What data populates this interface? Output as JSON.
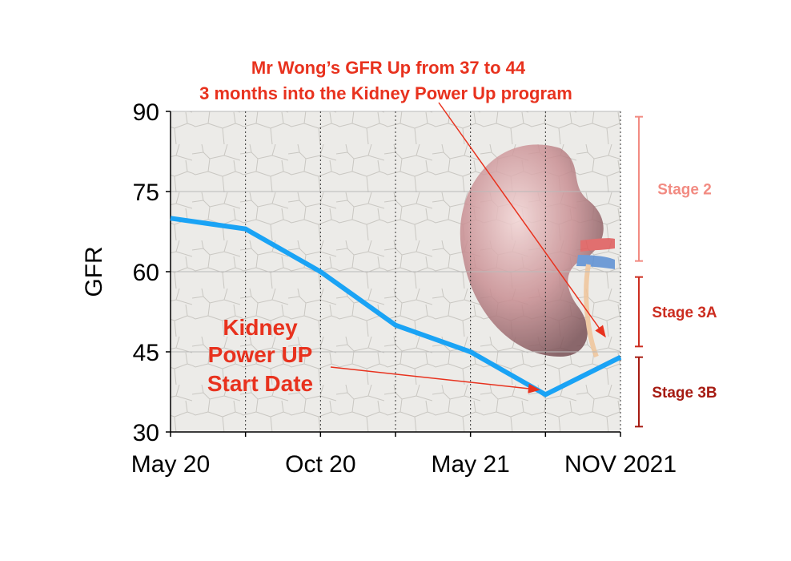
{
  "title": {
    "line1": "Mr Wong’s GFR Up from 37 to 44",
    "line2": "3 months into the Kidney Power Up program",
    "color": "#e8321e"
  },
  "chart_data": {
    "type": "line",
    "ylabel": "GFR",
    "xlabel": "",
    "ylim": [
      30,
      90
    ],
    "yticks": [
      30,
      45,
      60,
      75,
      90
    ],
    "x_tick_labels": [
      {
        "label": "May 20",
        "index": 0
      },
      {
        "label": "Oct 20",
        "index": 2
      },
      {
        "label": "May 21",
        "index": 4
      },
      {
        "label": "NOV 2021",
        "index": 6
      }
    ],
    "x_count": 7,
    "series": [
      {
        "name": "GFR",
        "color": "#1aa3f5",
        "points": [
          {
            "x": 0,
            "y": 70
          },
          {
            "x": 1,
            "y": 68
          },
          {
            "x": 2,
            "y": 60
          },
          {
            "x": 3,
            "y": 50
          },
          {
            "x": 4,
            "y": 45
          },
          {
            "x": 5,
            "y": 37
          },
          {
            "x": 6,
            "y": 44
          }
        ]
      }
    ],
    "grid": true,
    "annotations": {
      "start": {
        "lines": [
          "Kidney",
          "Power UP",
          "Start Date"
        ],
        "points_to": {
          "x": 5,
          "y": 37
        },
        "color": "#e8321e"
      }
    },
    "stages": [
      {
        "label": "Stage 2",
        "range": [
          62,
          89
        ],
        "color": "#f28b82"
      },
      {
        "label": "Stage 3A",
        "range": [
          46,
          59
        ],
        "color": "#cc2d20"
      },
      {
        "label": "Stage 3B",
        "range": [
          31,
          44
        ],
        "color": "#a61b12"
      }
    ]
  }
}
